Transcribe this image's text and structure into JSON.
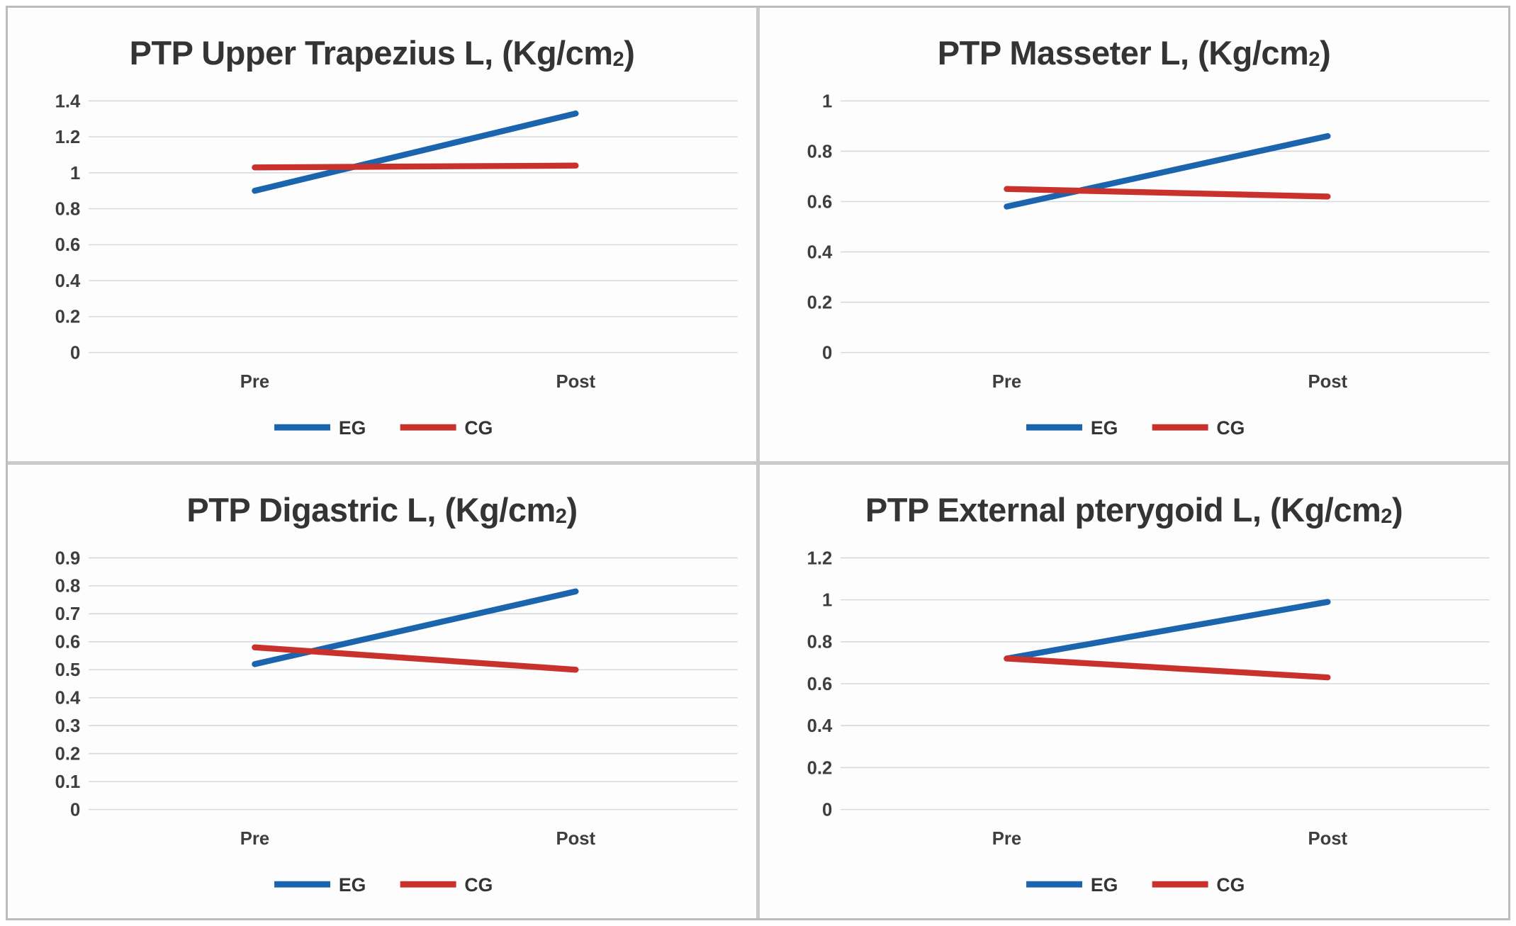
{
  "figure": {
    "border_color": "#bdbdbd",
    "divider_color": "#c9c9c9",
    "plot_background": "#fdfdfe",
    "gridline_color": "#d4d9de",
    "title_color": "#343434",
    "tick_color": "#3e3e3e",
    "eg_color": "#1b64ae",
    "cg_color": "#c9322c"
  },
  "chart_data": [
    {
      "type": "line",
      "title": "PTP Upper Trapezius L, (Kg/cm2)",
      "title_parts": {
        "main": "PTP Upper Trapezius L, (Kg/cm",
        "sup": "2",
        "close": ")"
      },
      "categories": [
        "Pre",
        "Post"
      ],
      "ylim": [
        0,
        1.4
      ],
      "ystep": 0.2,
      "y_tick_labels": [
        "1.4",
        "1.2",
        "1",
        "0.8",
        "0.6",
        "0.4",
        "0.2",
        "0"
      ],
      "grid": true,
      "legend_position": "bottom",
      "series": [
        {
          "name": "EG",
          "color": "#1b64ae",
          "values": [
            0.9,
            1.33
          ]
        },
        {
          "name": "CG",
          "color": "#c9322c",
          "values": [
            1.03,
            1.04
          ]
        }
      ]
    },
    {
      "type": "line",
      "title": "PTP Masseter L, (Kg/cm2)",
      "title_parts": {
        "main": "PTP Masseter L, (Kg/cm",
        "sup": "2",
        "close": ")"
      },
      "categories": [
        "Pre",
        "Post"
      ],
      "ylim": [
        0,
        1
      ],
      "ystep": 0.2,
      "y_tick_labels": [
        "1",
        "0.8",
        "0.6",
        "0.4",
        "0.2",
        "0"
      ],
      "grid": true,
      "legend_position": "bottom",
      "series": [
        {
          "name": "EG",
          "color": "#1b64ae",
          "values": [
            0.58,
            0.86
          ]
        },
        {
          "name": "CG",
          "color": "#c9322c",
          "values": [
            0.65,
            0.62
          ]
        }
      ]
    },
    {
      "type": "line",
      "title": "PTP Digastric L, (Kg/cm2)",
      "title_parts": {
        "main": "PTP Digastric L, (Kg/cm",
        "sup": "2",
        "close": ")"
      },
      "categories": [
        "Pre",
        "Post"
      ],
      "ylim": [
        0,
        0.9
      ],
      "ystep": 0.1,
      "y_tick_labels": [
        "0.9",
        "0.8",
        "0.7",
        "0.6",
        "0.5",
        "0.4",
        "0.3",
        "0.2",
        "0.1",
        "0"
      ],
      "grid": true,
      "legend_position": "bottom",
      "series": [
        {
          "name": "EG",
          "color": "#1b64ae",
          "values": [
            0.52,
            0.78
          ]
        },
        {
          "name": "CG",
          "color": "#c9322c",
          "values": [
            0.58,
            0.5
          ]
        }
      ]
    },
    {
      "type": "line",
      "title": "PTP External pterygoid L, (Kg/cm2)",
      "title_parts": {
        "main": "PTP External pterygoid L, (Kg/cm",
        "sup": "2",
        "close": ")"
      },
      "categories": [
        "Pre",
        "Post"
      ],
      "ylim": [
        0,
        1.2
      ],
      "ystep": 0.2,
      "y_tick_labels": [
        "1.2",
        "1",
        "0.8",
        "0.6",
        "0.4",
        "0.2",
        "0"
      ],
      "grid": true,
      "legend_position": "bottom",
      "series": [
        {
          "name": "EG",
          "color": "#1b64ae",
          "values": [
            0.72,
            0.99
          ]
        },
        {
          "name": "CG",
          "color": "#c9322c",
          "values": [
            0.72,
            0.63
          ]
        }
      ]
    }
  ]
}
